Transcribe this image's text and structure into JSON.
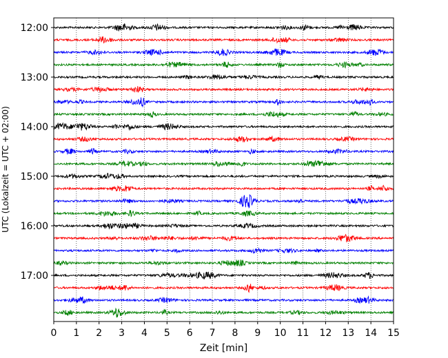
{
  "chart_data": {
    "type": "line",
    "title": "",
    "xlabel": "Zeit  [min]",
    "ylabel": "UTC (Lokalzeit = UTC + 02:00)",
    "xlim": [
      0,
      15
    ],
    "x_ticks": [
      0,
      1,
      2,
      3,
      4,
      5,
      6,
      7,
      8,
      9,
      10,
      11,
      12,
      13,
      14,
      15
    ],
    "x_tick_labels": [
      "0",
      "1",
      "2",
      "3",
      "4",
      "5",
      "6",
      "7",
      "8",
      "9",
      "10",
      "11",
      "12",
      "13",
      "14",
      "15"
    ],
    "y_tick_labels": [
      "12:00",
      "13:00",
      "14:00",
      "15:00",
      "16:00",
      "17:00"
    ],
    "grid": "vertical dotted at each minute",
    "trace_interval_min": 15,
    "start_time": "12:00",
    "trace_count": 24,
    "trace_colors": [
      "#000000",
      "#ff0000",
      "#0000ff",
      "#008000"
    ],
    "legend": "none"
  }
}
